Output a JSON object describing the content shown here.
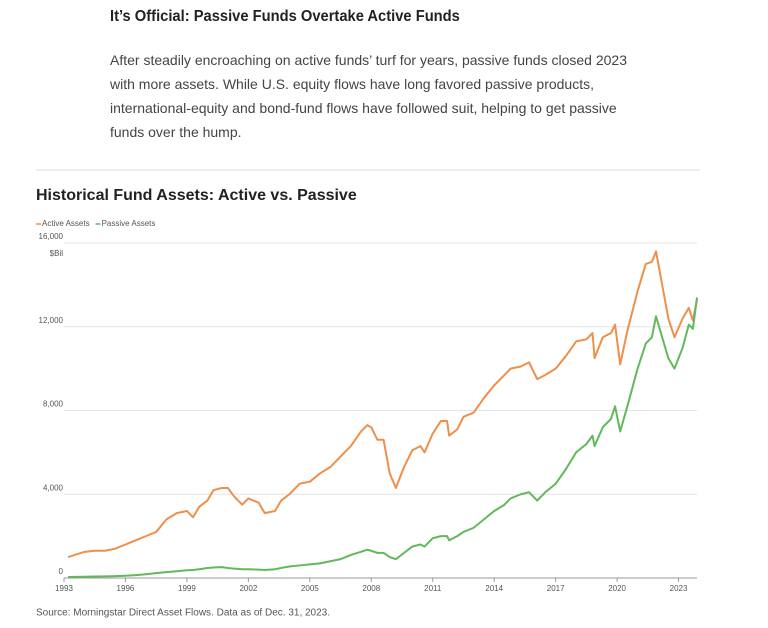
{
  "header": {
    "title": "It’s Official: Passive Funds Overtake Active Funds",
    "body": "After steadily encroaching on active funds’ turf for years, passive funds closed 2023 with more assets. While U.S. equity flows have long favored passive products, international-equity and bond-fund flows have followed suit, helping to get passive funds over the hump."
  },
  "chart_data": {
    "type": "line",
    "title": "Historical Fund Assets: Active vs. Passive",
    "y_unit": "$Bil",
    "source": "Source: Morningstar Direct Asset Flows. Data as of Dec. 31, 2023.",
    "x": [
      1993.2,
      1994,
      1994.5,
      1995,
      1995.5,
      1996,
      1996.5,
      1997,
      1997.5,
      1998,
      1998.5,
      1999,
      1999.3,
      1999.6,
      2000,
      2000.3,
      2000.7,
      2001,
      2001.3,
      2001.7,
      2002,
      2002.5,
      2002.8,
      2003.3,
      2003.6,
      2004,
      2004.5,
      2005,
      2005.5,
      2006,
      2006.5,
      2007,
      2007.5,
      2007.8,
      2008,
      2008.3,
      2008.6,
      2008.9,
      2009.2,
      2009.6,
      2010,
      2010.4,
      2010.6,
      2011,
      2011.4,
      2011.7,
      2011.8,
      2012.2,
      2012.5,
      2013,
      2013.5,
      2014,
      2014.5,
      2014.8,
      2015.3,
      2015.7,
      2016.1,
      2016.5,
      2017,
      2017.5,
      2018,
      2018.5,
      2018.8,
      2018.9,
      2019.3,
      2019.7,
      2019.9,
      2020.15,
      2020.5,
      2021,
      2021.4,
      2021.7,
      2021.9,
      2022.2,
      2022.5,
      2022.8,
      2023.2,
      2023.5,
      2023.7,
      2023.9
    ],
    "series": [
      {
        "name": "Active Assets",
        "color": "#ee8f4c",
        "values": [
          1000,
          1250,
          1300,
          1300,
          1400,
          1600,
          1800,
          2000,
          2200,
          2800,
          3100,
          3200,
          2900,
          3400,
          3700,
          4200,
          4300,
          4300,
          3900,
          3500,
          3800,
          3600,
          3100,
          3200,
          3700,
          4000,
          4500,
          4600,
          5000,
          5300,
          5800,
          6300,
          7000,
          7300,
          7200,
          6600,
          6600,
          5000,
          4300,
          5300,
          6100,
          6300,
          6000,
          6900,
          7500,
          7500,
          6800,
          7100,
          7700,
          7900,
          8600,
          9200,
          9700,
          10000,
          10100,
          10300,
          9500,
          9700,
          10000,
          10600,
          11300,
          11400,
          11700,
          10500,
          11500,
          11700,
          12100,
          10200,
          11800,
          13700,
          15000,
          15100,
          15600,
          14000,
          12400,
          11500,
          12400,
          12900,
          12300,
          13300
        ]
      },
      {
        "name": "Passive Assets",
        "color": "#62b85a",
        "values": [
          50,
          60,
          70,
          80,
          90,
          110,
          140,
          180,
          230,
          280,
          320,
          370,
          380,
          420,
          480,
          500,
          520,
          480,
          450,
          420,
          420,
          400,
          380,
          420,
          480,
          550,
          600,
          650,
          700,
          800,
          900,
          1100,
          1250,
          1350,
          1300,
          1200,
          1200,
          1000,
          900,
          1200,
          1500,
          1600,
          1500,
          1900,
          2000,
          2000,
          1800,
          2000,
          2200,
          2400,
          2800,
          3200,
          3500,
          3800,
          4000,
          4100,
          3700,
          4100,
          4500,
          5200,
          6000,
          6400,
          6800,
          6300,
          7200,
          7600,
          8200,
          7000,
          8200,
          10000,
          11200,
          11500,
          12500,
          11500,
          10500,
          10000,
          11000,
          12100,
          11900,
          13400
        ]
      }
    ],
    "xlim": [
      1993,
      2023.9
    ],
    "xticks": [
      1993,
      1996,
      1999,
      2002,
      2005,
      2008,
      2011,
      2014,
      2017,
      2020,
      2023
    ],
    "ylim": [
      0,
      16000
    ],
    "yticks": [
      0,
      {
        "value": 4000,
        "label": "4,000"
      },
      {
        "value": 8000,
        "label": "8,000"
      },
      {
        "value": 12000,
        "label": "12,000"
      },
      {
        "value": 16000,
        "label": "16,000"
      }
    ],
    "grid": true,
    "legend": "top-left"
  }
}
